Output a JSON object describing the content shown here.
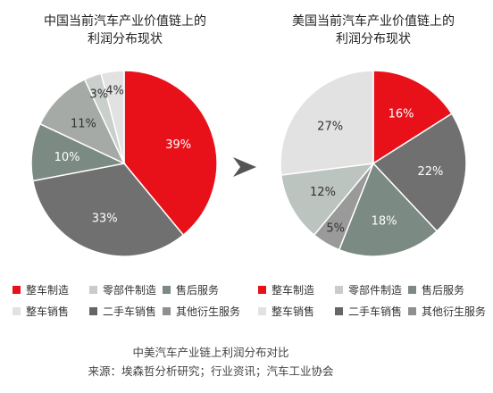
{
  "chart_data": [
    {
      "type": "pie",
      "title": [
        "中国当前汽车产业价值链上的",
        "利润分布现状"
      ],
      "slices": [
        {
          "name": "整车制造",
          "value": 39,
          "label": "39%",
          "color": "#e8111a"
        },
        {
          "name": "二手车销售",
          "value": 33,
          "label": "33%",
          "color": "#707070"
        },
        {
          "name": "售后服务",
          "value": 10,
          "label": "10%",
          "color": "#7b8a82"
        },
        {
          "name": "零部件制造",
          "value": 11,
          "label": "11%",
          "color": "#a6aaa7"
        },
        {
          "name": "其他衍生服务",
          "value": 3,
          "label": "3%",
          "color": "#c9cfcb"
        },
        {
          "name": "整车销售",
          "value": 4,
          "label": "4%",
          "color": "#e2e2e2"
        }
      ]
    },
    {
      "type": "pie",
      "title": [
        "美国当前汽车产业价值链上的",
        "利润分布现状"
      ],
      "slices": [
        {
          "name": "整车制造",
          "value": 16,
          "label": "16%",
          "color": "#e8111a"
        },
        {
          "name": "二手车销售",
          "value": 22,
          "label": "22%",
          "color": "#707070"
        },
        {
          "name": "售后服务",
          "value": 18,
          "label": "18%",
          "color": "#7b8a82"
        },
        {
          "name": "其他衍生服务",
          "value": 5,
          "label": "5%",
          "color": "#9a9a9a"
        },
        {
          "name": "零部件制造",
          "value": 12,
          "label": "12%",
          "color": "#bcc4bf"
        },
        {
          "name": "整车销售",
          "value": 27,
          "label": "27%",
          "color": "#e2e2e2"
        }
      ]
    }
  ],
  "legend": [
    {
      "label": "整车制造",
      "color": "#e8111a"
    },
    {
      "label": "零部件制造",
      "color": "#c9cdca"
    },
    {
      "label": "售后服务",
      "color": "#7b8a82"
    },
    {
      "label": "整车销售",
      "color": "#e2e2e2"
    },
    {
      "label": "二手车销售",
      "color": "#666666"
    },
    {
      "label": "其他衍生服务",
      "color": "#8f8f8f"
    }
  ],
  "caption": "中美汽车产业链上利润分布对比",
  "source": "来源：埃森哲分析研究；行业资讯；汽车工业协会"
}
